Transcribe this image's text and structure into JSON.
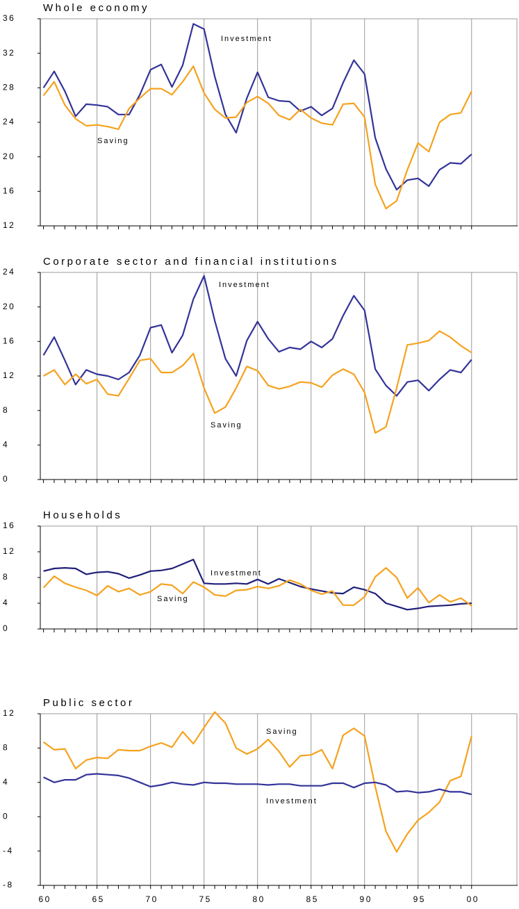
{
  "chart_data": [
    {
      "type": "line",
      "title": "Whole economy",
      "x": [
        1960,
        1961,
        1962,
        1963,
        1964,
        1965,
        1966,
        1967,
        1968,
        1969,
        1970,
        1971,
        1972,
        1973,
        1974,
        1975,
        1976,
        1977,
        1978,
        1979,
        1980,
        1981,
        1982,
        1983,
        1984,
        1985,
        1986,
        1987,
        1988,
        1989,
        1990,
        1991,
        1992,
        1993,
        1994,
        1995,
        1996,
        1997,
        1998,
        1999,
        2000
      ],
      "xlim": [
        1959.7,
        2004.3
      ],
      "ylim": [
        12,
        36
      ],
      "yticks": [
        12,
        16,
        20,
        24,
        28,
        32,
        36
      ],
      "series": [
        {
          "name": "Investment",
          "color": "#333399",
          "values": [
            28,
            29.9,
            27.6,
            24.7,
            26.1,
            26.0,
            25.8,
            24.9,
            24.9,
            27.2,
            30.1,
            30.7,
            28.1,
            30.6,
            35.4,
            34.8,
            29.3,
            24.9,
            22.8,
            26.8,
            29.8,
            26.9,
            26.5,
            26.4,
            25.3,
            25.8,
            24.8,
            25.6,
            28.6,
            31.2,
            29.6,
            22.2,
            18.6,
            16.2,
            17.3,
            17.5,
            16.6,
            18.5,
            19.3,
            19.2,
            20.3
          ]
        },
        {
          "name": "Saving",
          "color": "#f5a21e",
          "values": [
            27.1,
            28.7,
            26.0,
            24.4,
            23.6,
            23.7,
            23.5,
            23.2,
            25.6,
            26.8,
            27.9,
            27.9,
            27.2,
            28.7,
            30.5,
            27.4,
            25.5,
            24.5,
            24.6,
            26.3,
            27.0,
            26.2,
            24.8,
            24.3,
            25.5,
            24.5,
            23.9,
            23.7,
            26.1,
            26.2,
            24.6,
            16.8,
            14.0,
            14.9,
            18.5,
            21.6,
            20.6,
            24.0,
            24.9,
            25.1,
            27.6
          ]
        }
      ]
    },
    {
      "type": "line",
      "title": "Corporate sector and financial institutions",
      "x": [
        1960,
        1961,
        1962,
        1963,
        1964,
        1965,
        1966,
        1967,
        1968,
        1969,
        1970,
        1971,
        1972,
        1973,
        1974,
        1975,
        1976,
        1977,
        1978,
        1979,
        1980,
        1981,
        1982,
        1983,
        1984,
        1985,
        1986,
        1987,
        1988,
        1989,
        1990,
        1991,
        1992,
        1993,
        1994,
        1995,
        1996,
        1997,
        1998,
        1999,
        2000
      ],
      "xlim": [
        1959.7,
        2004.3
      ],
      "ylim": [
        0,
        24
      ],
      "yticks": [
        0,
        4,
        8,
        12,
        16,
        20,
        24
      ],
      "series": [
        {
          "name": "Investment",
          "color": "#333399",
          "values": [
            14.4,
            16.5,
            13.8,
            11.0,
            12.7,
            12.2,
            12.0,
            11.6,
            12.4,
            14.4,
            17.6,
            17.9,
            14.7,
            16.7,
            20.9,
            23.6,
            18.4,
            14.0,
            12.0,
            16.1,
            18.3,
            16.3,
            14.8,
            15.3,
            15.1,
            16.0,
            15.3,
            16.3,
            19.0,
            21.3,
            19.6,
            12.8,
            10.9,
            9.7,
            11.3,
            11.5,
            10.3,
            11.6,
            12.7,
            12.4,
            13.9
          ]
        },
        {
          "name": "Saving",
          "color": "#f5a21e",
          "values": [
            12.0,
            12.7,
            11.0,
            12.2,
            11.1,
            11.6,
            9.9,
            9.7,
            11.7,
            13.8,
            14.0,
            12.4,
            12.4,
            13.2,
            14.6,
            10.6,
            7.7,
            8.4,
            10.6,
            13.1,
            12.6,
            10.9,
            10.5,
            10.8,
            11.3,
            11.2,
            10.7,
            12.1,
            12.8,
            12.2,
            10.1,
            5.4,
            6.1,
            10.6,
            15.6,
            15.8,
            16.1,
            17.2,
            16.5,
            15.5,
            14.7
          ]
        }
      ]
    },
    {
      "type": "line",
      "title": "Households",
      "x": [
        1960,
        1961,
        1962,
        1963,
        1964,
        1965,
        1966,
        1967,
        1968,
        1969,
        1970,
        1971,
        1972,
        1973,
        1974,
        1975,
        1976,
        1977,
        1978,
        1979,
        1980,
        1981,
        1982,
        1983,
        1984,
        1985,
        1986,
        1987,
        1988,
        1989,
        1990,
        1991,
        1992,
        1993,
        1994,
        1995,
        1996,
        1997,
        1998,
        1999,
        2000
      ],
      "xlim": [
        1959.7,
        2004.3
      ],
      "ylim": [
        0,
        16
      ],
      "yticks": [
        0,
        4,
        8,
        12,
        16
      ],
      "series": [
        {
          "name": "Investment",
          "color": "#1f1f7a",
          "values": [
            9.0,
            9.4,
            9.5,
            9.4,
            8.5,
            8.8,
            8.9,
            8.6,
            7.9,
            8.4,
            9.0,
            9.1,
            9.4,
            10.1,
            10.8,
            7.1,
            7.0,
            7.0,
            7.1,
            7.0,
            7.7,
            7.0,
            7.8,
            7.2,
            6.6,
            6.2,
            5.9,
            5.6,
            5.5,
            6.5,
            6.1,
            5.5,
            4.0,
            3.5,
            3.0,
            3.2,
            3.5,
            3.6,
            3.7,
            3.9,
            4.0
          ]
        },
        {
          "name": "Saving",
          "color": "#f5a21e",
          "values": [
            6.4,
            8.2,
            7.1,
            6.5,
            6.0,
            5.2,
            6.7,
            5.8,
            6.3,
            5.3,
            5.8,
            7.0,
            6.8,
            5.5,
            7.3,
            6.5,
            5.3,
            5.1,
            6.0,
            6.1,
            6.6,
            6.3,
            6.7,
            7.6,
            7.0,
            6.0,
            5.4,
            5.9,
            3.7,
            3.7,
            5.0,
            8.1,
            9.5,
            8.0,
            4.8,
            6.4,
            4.1,
            5.3,
            4.2,
            4.8,
            3.6
          ]
        }
      ]
    },
    {
      "type": "line",
      "title": "Public sector",
      "x": [
        1960,
        1961,
        1962,
        1963,
        1964,
        1965,
        1966,
        1967,
        1968,
        1969,
        1970,
        1971,
        1972,
        1973,
        1974,
        1975,
        1976,
        1977,
        1978,
        1979,
        1980,
        1981,
        1982,
        1983,
        1984,
        1985,
        1986,
        1987,
        1988,
        1989,
        1990,
        1991,
        1992,
        1993,
        1994,
        1995,
        1996,
        1997,
        1998,
        1999,
        2000
      ],
      "xlim": [
        1959.7,
        2004.3
      ],
      "ylim": [
        -8,
        12
      ],
      "yticks": [
        -8,
        -4,
        0,
        4,
        8,
        12
      ],
      "xticks": [
        {
          "value": 1960,
          "label": "60"
        },
        {
          "value": 1965,
          "label": "65"
        },
        {
          "value": 1970,
          "label": "70"
        },
        {
          "value": 1975,
          "label": "75"
        },
        {
          "value": 1980,
          "label": "80"
        },
        {
          "value": 1985,
          "label": "85"
        },
        {
          "value": 1990,
          "label": "90"
        },
        {
          "value": 1995,
          "label": "95"
        },
        {
          "value": 2000,
          "label": "00"
        }
      ],
      "series": [
        {
          "name": "Saving",
          "color": "#f5a21e",
          "values": [
            8.7,
            7.8,
            7.9,
            5.6,
            6.6,
            6.9,
            6.8,
            7.8,
            7.7,
            7.7,
            8.2,
            8.6,
            8.1,
            9.9,
            8.5,
            10.4,
            12.2,
            10.9,
            8.0,
            7.3,
            7.9,
            9.0,
            7.6,
            5.8,
            7.1,
            7.2,
            7.8,
            5.6,
            9.5,
            10.3,
            9.4,
            3.5,
            -1.7,
            -4.1,
            -2.0,
            -0.4,
            0.5,
            1.7,
            4.2,
            4.7,
            9.4
          ]
        },
        {
          "name": "Investment",
          "color": "#333399",
          "values": [
            4.6,
            4.0,
            4.3,
            4.3,
            4.9,
            5.0,
            4.9,
            4.8,
            4.5,
            4.0,
            3.5,
            3.7,
            4.0,
            3.8,
            3.7,
            4.0,
            3.9,
            3.9,
            3.8,
            3.8,
            3.8,
            3.7,
            3.8,
            3.8,
            3.6,
            3.6,
            3.6,
            3.9,
            3.9,
            3.4,
            3.9,
            4.0,
            3.7,
            2.9,
            3.0,
            2.8,
            2.9,
            3.2,
            2.9,
            2.9,
            2.6
          ]
        }
      ]
    }
  ]
}
